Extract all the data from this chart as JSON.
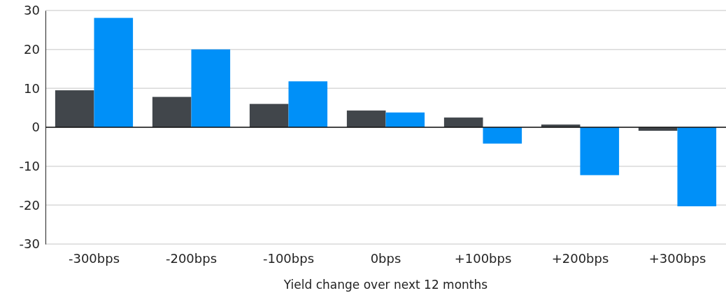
{
  "chart_data": {
    "type": "bar",
    "xlabel": "Yield change over next 12 months",
    "categories": [
      "-300bps",
      "-200bps",
      "-100bps",
      "0bps",
      "+100bps",
      "+200bps",
      "+300bps"
    ],
    "series": [
      {
        "color": "#41464b",
        "values": [
          9.5,
          7.8,
          6.0,
          4.3,
          2.5,
          0.7,
          -0.9
        ]
      },
      {
        "color": "#0090f8",
        "values": [
          28.1,
          20,
          11.8,
          3.8,
          -4.2,
          -12.3,
          -20.3
        ]
      }
    ],
    "ylim": [
      -30,
      30
    ],
    "yticks": [
      -30,
      -20,
      -10,
      0,
      10,
      20,
      30
    ],
    "grid": "y"
  }
}
